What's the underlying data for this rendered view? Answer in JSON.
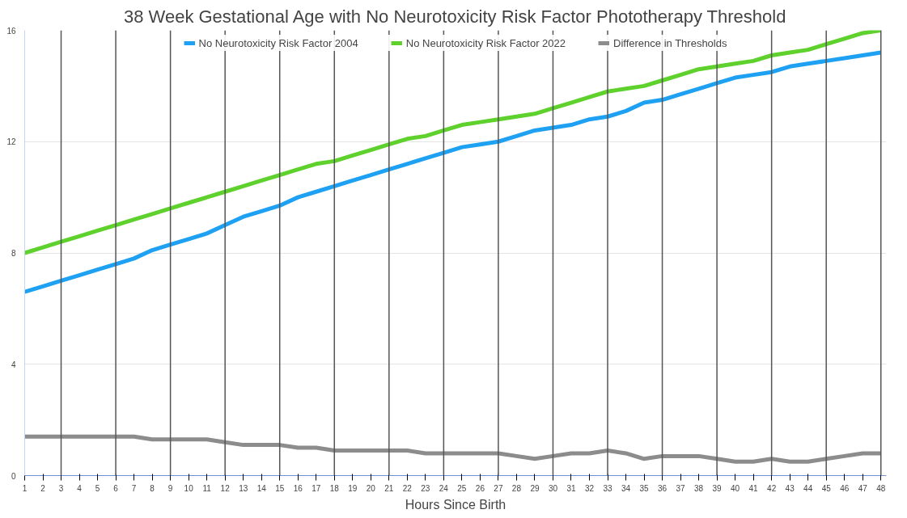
{
  "chart_data": {
    "type": "line",
    "title": "38 Week Gestational Age with No Neurotoxicity Risk Factor Phototherapy Threshold",
    "xlabel": "Hours Since Birth",
    "x": [
      1,
      2,
      3,
      4,
      5,
      6,
      7,
      8,
      9,
      10,
      11,
      12,
      13,
      14,
      15,
      16,
      17,
      18,
      19,
      20,
      21,
      22,
      23,
      24,
      25,
      26,
      27,
      28,
      29,
      30,
      31,
      32,
      33,
      34,
      35,
      36,
      37,
      38,
      39,
      40,
      41,
      42,
      43,
      44,
      45,
      46,
      47,
      48
    ],
    "xlim": [
      1,
      48.3
    ],
    "xticks": [
      1,
      2,
      3,
      4,
      5,
      6,
      7,
      8,
      9,
      10,
      11,
      12,
      13,
      14,
      15,
      16,
      17,
      18,
      19,
      20,
      21,
      22,
      23,
      24,
      25,
      26,
      27,
      28,
      29,
      30,
      31,
      32,
      33,
      34,
      35,
      36,
      37,
      38,
      39,
      40,
      41,
      42,
      43,
      44,
      45,
      46,
      47,
      48
    ],
    "ylim": [
      0,
      16
    ],
    "yticks": [
      0,
      4,
      8,
      12,
      16
    ],
    "grid": "y",
    "legend": "top",
    "marker": "none",
    "line_style": "solid",
    "series": [
      {
        "name": "No Neurotoxicity Risk Factor 2004",
        "color": "#1ea1f2",
        "values": [
          6.6,
          6.8,
          7.0,
          7.2,
          7.4,
          7.6,
          7.8,
          8.1,
          8.3,
          8.5,
          8.7,
          9.0,
          9.3,
          9.5,
          9.7,
          10.0,
          10.2,
          10.4,
          10.6,
          10.8,
          11.0,
          11.2,
          11.4,
          11.6,
          11.8,
          11.9,
          12.0,
          12.2,
          12.4,
          12.5,
          12.6,
          12.8,
          12.9,
          13.1,
          13.4,
          13.5,
          13.7,
          13.9,
          14.1,
          14.3,
          14.4,
          14.5,
          14.7,
          14.8,
          14.9,
          15.0,
          15.1,
          15.2
        ]
      },
      {
        "name": "No Neurotoxicity Risk Factor 2022",
        "color": "#5fd12c",
        "values": [
          8.0,
          8.2,
          8.4,
          8.6,
          8.8,
          9.0,
          9.2,
          9.4,
          9.6,
          9.8,
          10.0,
          10.2,
          10.4,
          10.6,
          10.8,
          11.0,
          11.2,
          11.3,
          11.5,
          11.7,
          11.9,
          12.1,
          12.2,
          12.4,
          12.6,
          12.7,
          12.8,
          12.9,
          13.0,
          13.2,
          13.4,
          13.6,
          13.8,
          13.9,
          14.0,
          14.2,
          14.4,
          14.6,
          14.7,
          14.8,
          14.9,
          15.1,
          15.2,
          15.3,
          15.5,
          15.7,
          15.9,
          16.0
        ]
      },
      {
        "name": "Difference in Thresholds",
        "color": "#8c8c8c",
        "values": [
          1.4,
          1.4,
          1.4,
          1.4,
          1.4,
          1.4,
          1.4,
          1.3,
          1.3,
          1.3,
          1.3,
          1.2,
          1.1,
          1.1,
          1.1,
          1.0,
          1.0,
          0.9,
          0.9,
          0.9,
          0.9,
          0.9,
          0.8,
          0.8,
          0.8,
          0.8,
          0.8,
          0.7,
          0.6,
          0.7,
          0.8,
          0.8,
          0.9,
          0.8,
          0.6,
          0.7,
          0.7,
          0.7,
          0.6,
          0.5,
          0.5,
          0.6,
          0.5,
          0.5,
          0.6,
          0.7,
          0.8,
          0.8
        ]
      }
    ],
    "ref_lines": [
      {
        "axis": "x",
        "value": 3,
        "color": "#555555"
      },
      {
        "axis": "x",
        "value": 6,
        "color": "#555555"
      },
      {
        "axis": "x",
        "value": 9,
        "color": "#555555"
      },
      {
        "axis": "x",
        "value": 12,
        "color": "#555555"
      },
      {
        "axis": "x",
        "value": 15,
        "color": "#555555"
      },
      {
        "axis": "x",
        "value": 18,
        "color": "#555555"
      },
      {
        "axis": "x",
        "value": 21,
        "color": "#555555"
      },
      {
        "axis": "x",
        "value": 24,
        "color": "#555555"
      },
      {
        "axis": "x",
        "value": 27,
        "color": "#555555"
      },
      {
        "axis": "x",
        "value": 30,
        "color": "#555555"
      },
      {
        "axis": "x",
        "value": 33,
        "color": "#555555"
      },
      {
        "axis": "x",
        "value": 36,
        "color": "#555555"
      },
      {
        "axis": "x",
        "value": 39,
        "color": "#555555"
      },
      {
        "axis": "x",
        "value": 42,
        "color": "#555555"
      },
      {
        "axis": "x",
        "value": 45,
        "color": "#555555"
      },
      {
        "axis": "x",
        "value": 48,
        "color": "#555555"
      }
    ]
  }
}
